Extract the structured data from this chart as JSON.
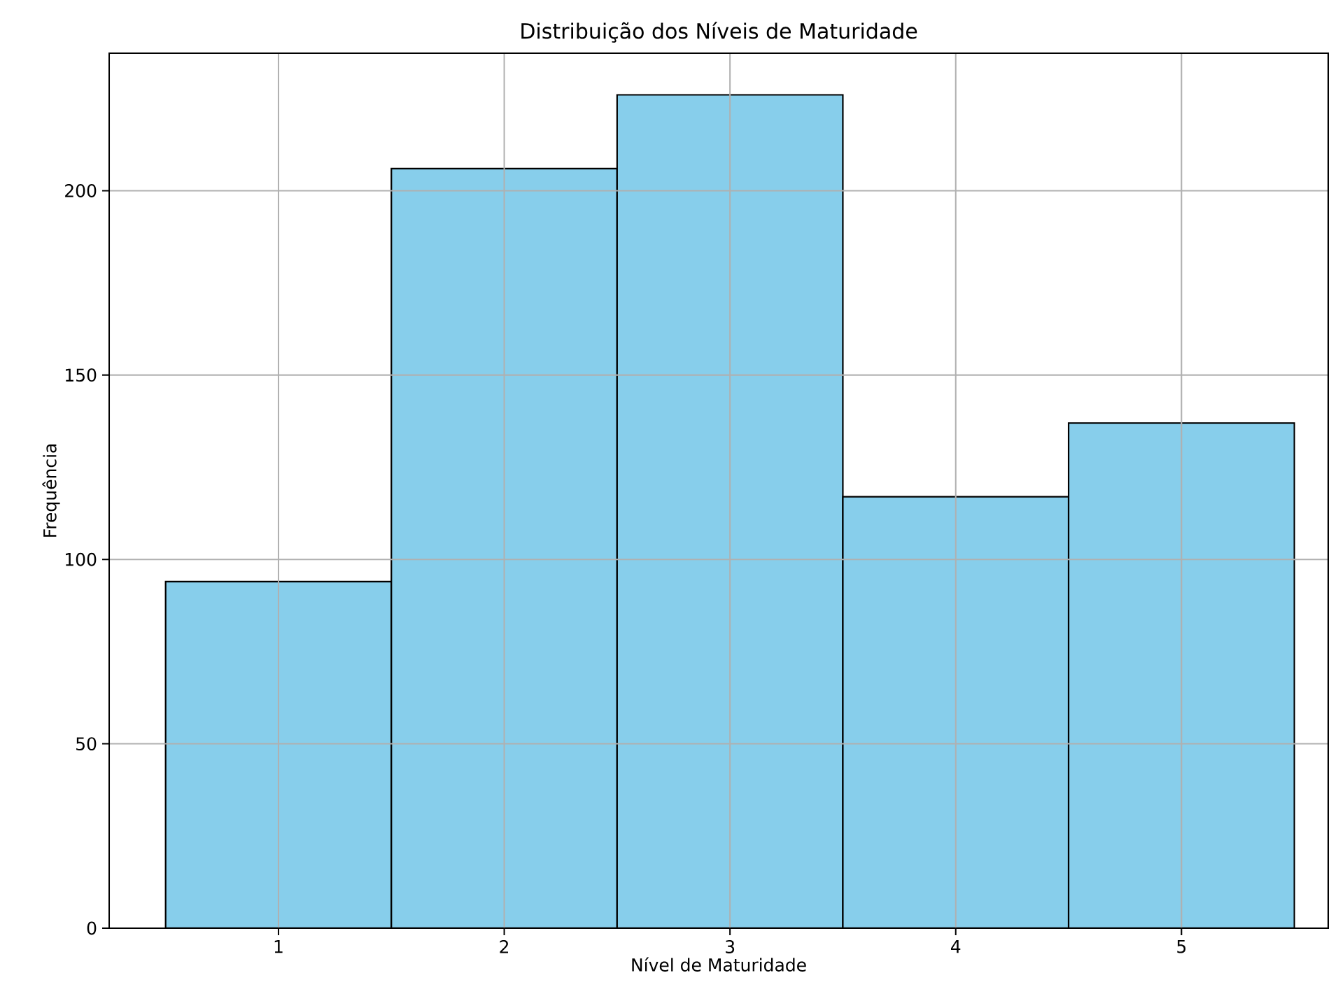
{
  "chart_data": {
    "type": "histogram",
    "title": "Distribuição dos Níveis de Maturidade",
    "xlabel": "Nível de Maturidade",
    "ylabel": "Frequência",
    "bins": [
      0.5,
      1.5,
      2.5,
      3.5,
      4.5,
      5.5
    ],
    "values": [
      94,
      206,
      226,
      117,
      137
    ],
    "color": "#87ceeb",
    "xlim": [
      0.25,
      5.65
    ],
    "ylim": [
      0,
      237.3
    ],
    "xticks": [
      1,
      2,
      3,
      4,
      5
    ],
    "yticks": [
      0,
      50,
      100,
      150,
      200
    ],
    "grid": true
  }
}
